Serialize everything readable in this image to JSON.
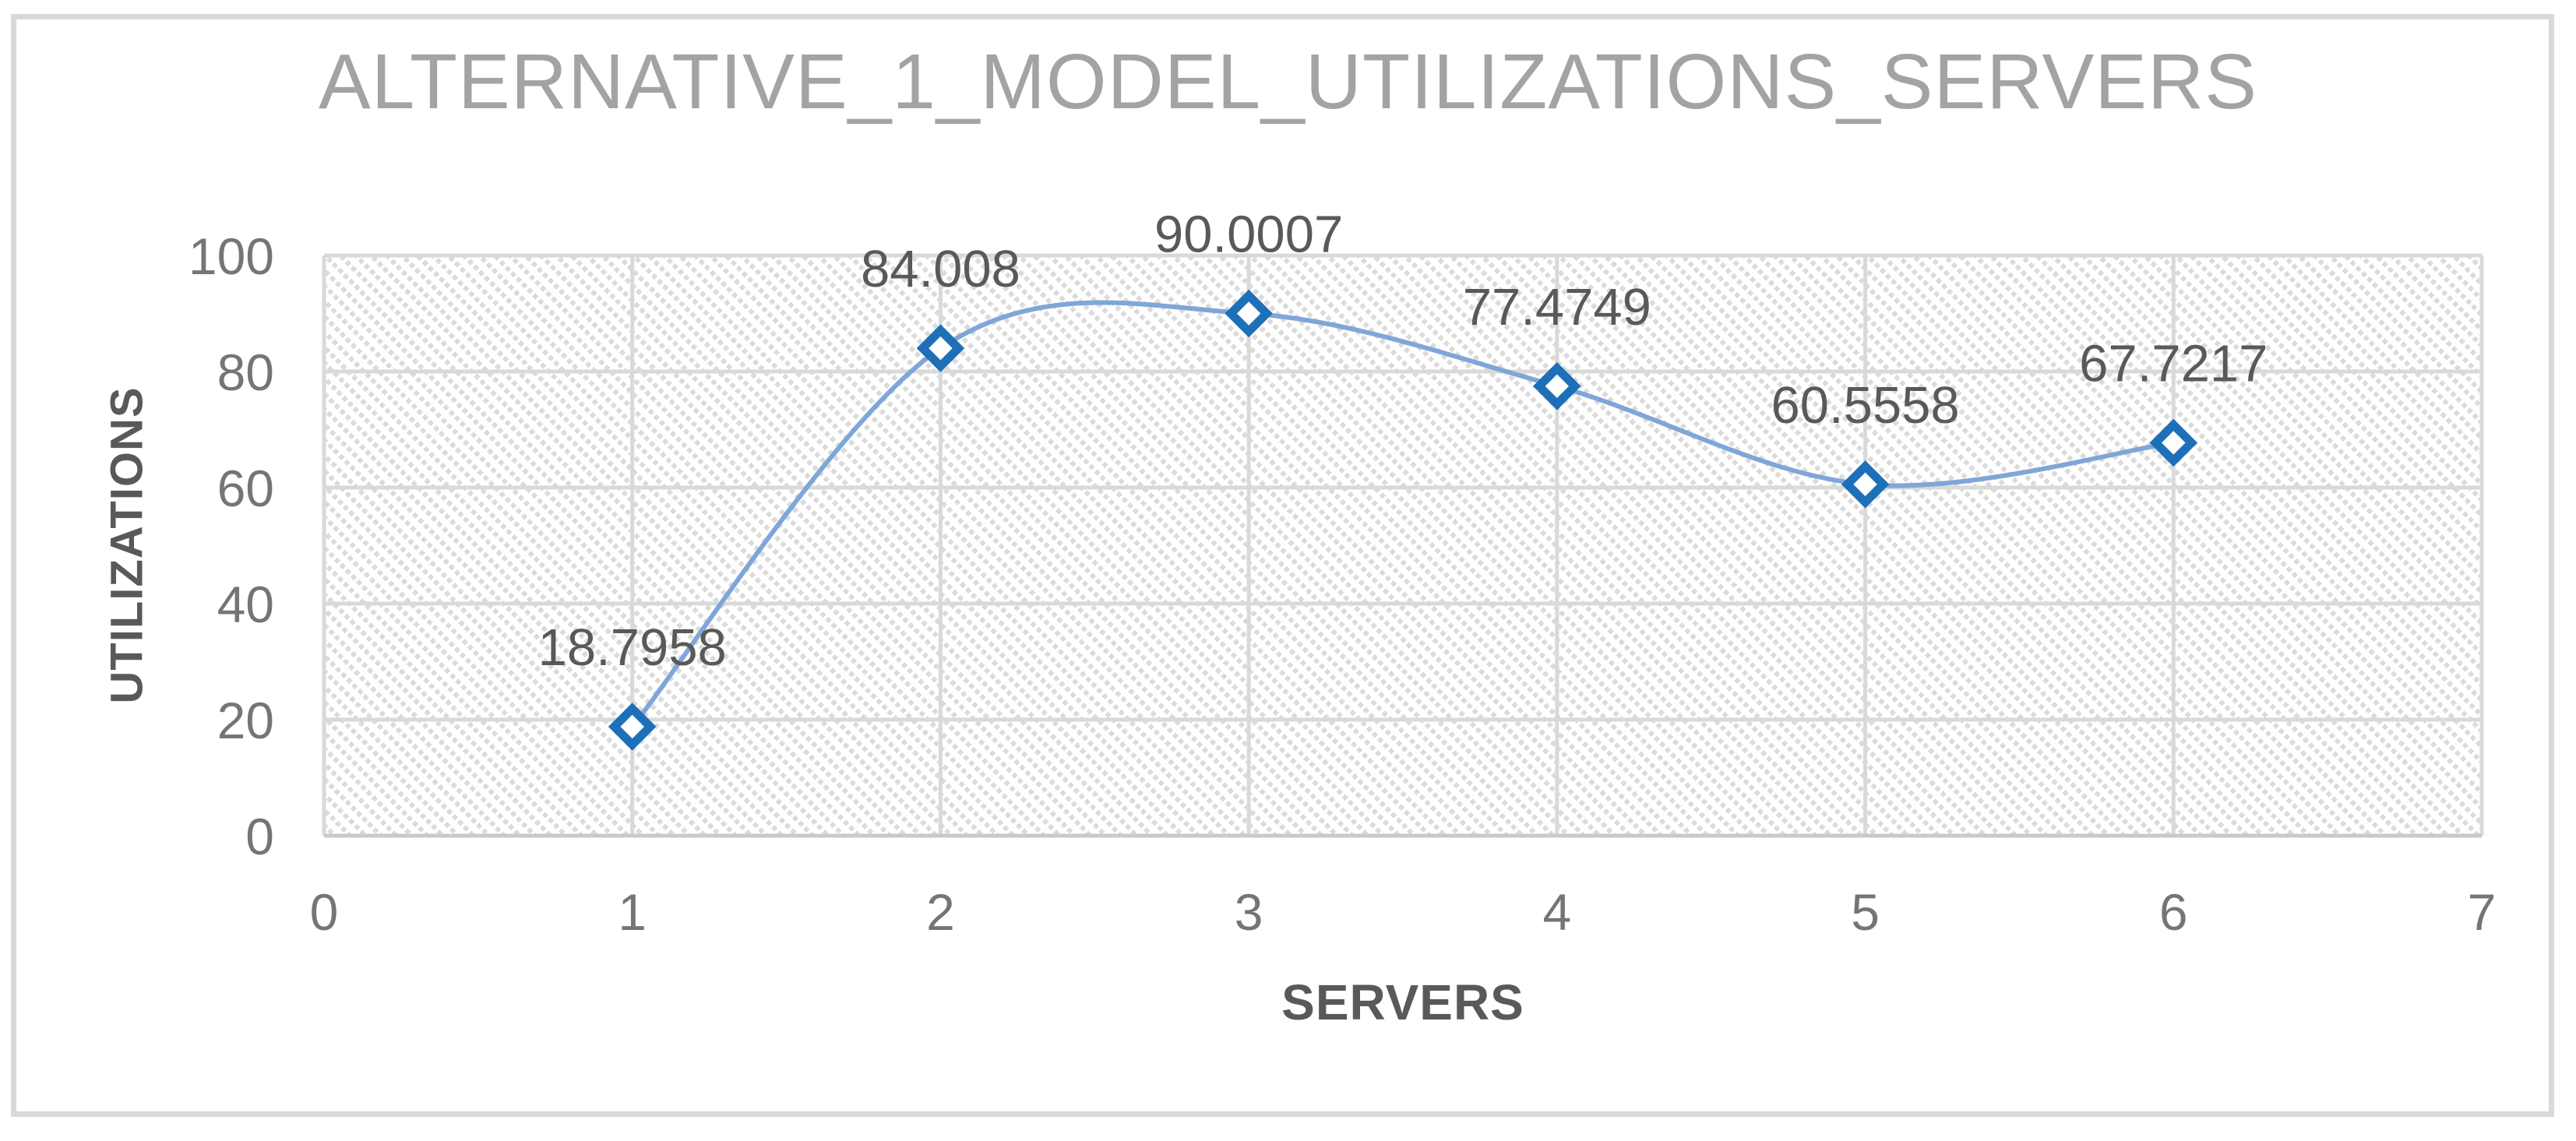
{
  "chart": {
    "title": "ALTERNATIVE_1_MODEL_UTILIZATIONS_SERVERS",
    "y_axis_title": "UTILIZATIONS",
    "x_axis_title": "SERVERS"
  },
  "chart_data": {
    "type": "line",
    "subtype": "scatter-smooth-with-markers",
    "title": "ALTERNATIVE_1_MODEL_UTILIZATIONS_SERVERS",
    "xlabel": "SERVERS",
    "ylabel": "UTILIZATIONS",
    "x": [
      1,
      2,
      3,
      4,
      5,
      6
    ],
    "y": [
      18.7958,
      84.008,
      90.0007,
      77.4749,
      60.5558,
      67.7217
    ],
    "point_labels": [
      "18.7958",
      "84.008",
      "90.0007",
      "77.4749",
      "60.5558",
      "67.7217"
    ],
    "xlim": [
      0,
      7
    ],
    "ylim": [
      0,
      100
    ],
    "x_ticks": [
      0,
      1,
      2,
      3,
      4,
      5,
      6,
      7
    ],
    "y_ticks": [
      0,
      20,
      40,
      60,
      80,
      100
    ],
    "grid": true,
    "legend": false,
    "marker": "diamond",
    "plot_area_fill": "diagonal-dot-hatch",
    "colors": {
      "line": "#7fa6d8",
      "marker_stroke": "#1d70b8",
      "marker_fill": "#ffffff",
      "gridline": "#d9d9d9",
      "hatch_dot": "#dbdbdb",
      "axis_line": "#c9c9c9",
      "tick_label": "#757575",
      "data_label": "#595959",
      "axis_title": "#595959",
      "chart_title": "#a3a3a3",
      "frame_border": "#d9d9d9"
    }
  }
}
